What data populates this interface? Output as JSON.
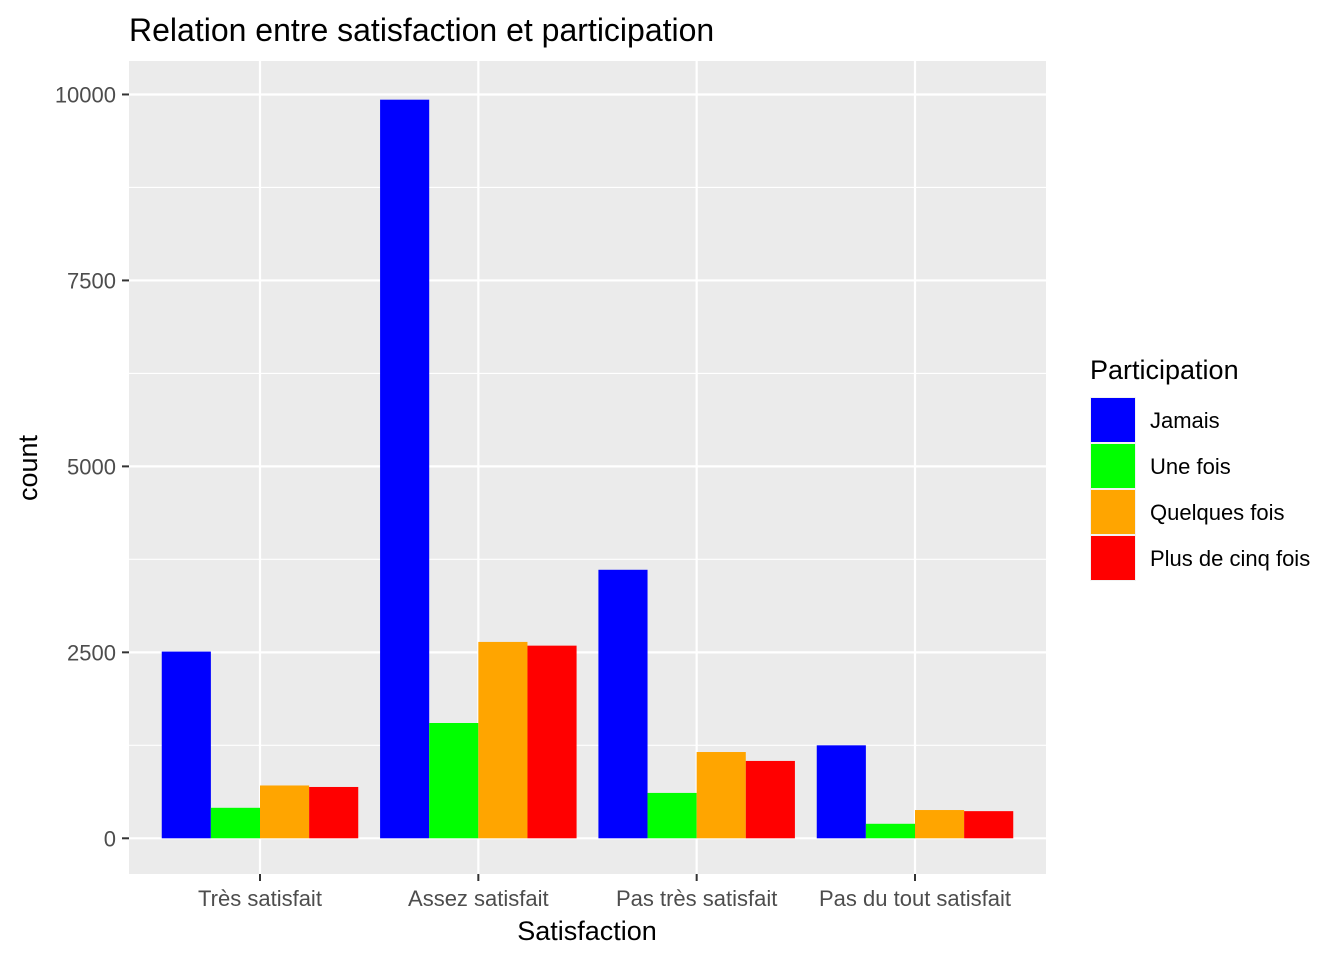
{
  "chart_data": {
    "type": "bar",
    "title": "Relation entre satisfaction et participation",
    "xlabel": "Satisfaction",
    "ylabel": "count",
    "categories": [
      "Très satisfait",
      "Assez satisfait",
      "Pas très satisfait",
      "Pas du tout satisfait"
    ],
    "series": [
      {
        "name": "Jamais",
        "color": "#0000FF",
        "values": [
          2510,
          9930,
          3610,
          1250
        ]
      },
      {
        "name": "Une fois",
        "color": "#00FF00",
        "values": [
          410,
          1550,
          610,
          195
        ]
      },
      {
        "name": "Quelques fois",
        "color": "#FFA500",
        "values": [
          710,
          2640,
          1160,
          380
        ]
      },
      {
        "name": "Plus de cinq fois",
        "color": "#FF0000",
        "values": [
          690,
          2590,
          1040,
          365
        ]
      }
    ],
    "ylim": [
      -480,
      10450
    ],
    "yticks": [
      0,
      2500,
      5000,
      7500,
      10000
    ],
    "ytick_labels": [
      "0",
      "2500",
      "5000",
      "7500",
      "10000"
    ],
    "grid": true,
    "legend": {
      "title": "Participation",
      "position": "right"
    },
    "colors": {
      "panel": "#EBEBEB",
      "grid": "#FFFFFF",
      "tick_text": "#4D4D4D"
    }
  }
}
